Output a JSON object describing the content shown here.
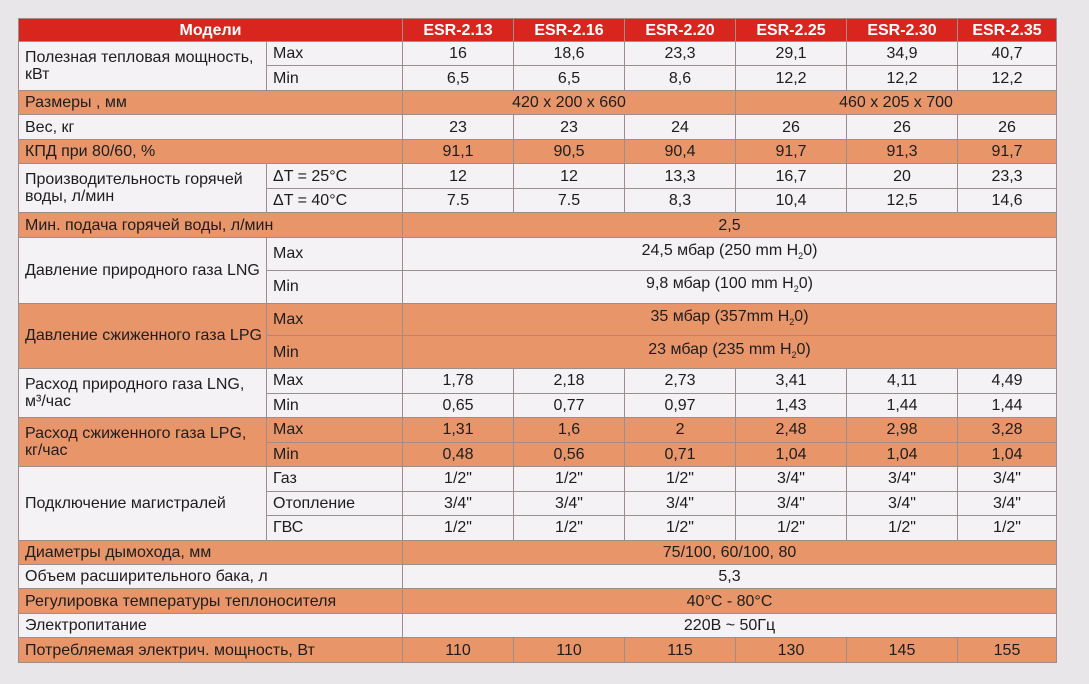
{
  "header": {
    "models_label": "Модели",
    "models": [
      "ESR-2.13",
      "ESR-2.16",
      "ESR-2.20",
      "ESR-2.25",
      "ESR-2.30",
      "ESR-2.35"
    ]
  },
  "rows": {
    "heat_output": {
      "label": "Полезная тепловая мощность, кВт",
      "max_label": "Max",
      "min_label": "Min",
      "max": [
        "16",
        "18,6",
        "23,3",
        "29,1",
        "34,9",
        "40,7"
      ],
      "min": [
        "6,5",
        "6,5",
        "8,6",
        "12,2",
        "12,2",
        "12,2"
      ]
    },
    "dimensions": {
      "label": "Размеры , мм",
      "value_a": "420 x 200 x 660",
      "value_b": "460 x 205 x 700"
    },
    "weight": {
      "label": "Вес, кг",
      "values": [
        "23",
        "23",
        "24",
        "26",
        "26",
        "26"
      ]
    },
    "efficiency": {
      "label": "КПД при 80/60, %",
      "values": [
        "91,1",
        "90,5",
        "90,4",
        "91,7",
        "91,3",
        "91,7"
      ]
    },
    "hot_water": {
      "label": "Производительность горячей воды, л/мин",
      "t25_label": "ΔT = 25°C",
      "t40_label": "ΔT = 40°C",
      "t25": [
        "12",
        "12",
        "13,3",
        "16,7",
        "20",
        "23,3"
      ],
      "t40": [
        "7.5",
        "7.5",
        "8,3",
        "10,4",
        "12,5",
        "14,6"
      ]
    },
    "min_hot_water": {
      "label": "Мин. подача горячей воды, л/мин",
      "value": "2,5"
    },
    "lng_pressure": {
      "label": "Давление природного газа LNG",
      "max_label": "Max",
      "min_label": "Min",
      "max_value": "24,5 мбар (250 mm H",
      "min_value": "9,8 мбар  (100 mm H",
      "sub": "2",
      "tail": "0)"
    },
    "lpg_pressure": {
      "label": "Давление сжиженного газа LPG",
      "max_label": "Max",
      "min_label": "Min",
      "max_value": "35 мбар (357mm H",
      "min_value": "23 мбар (235 mm H",
      "sub": "2",
      "tail": "0)"
    },
    "lng_consumption": {
      "label": "Расход природного газа LNG, м³/час",
      "max_label": "Max",
      "min_label": "Min",
      "max": [
        "1,78",
        "2,18",
        "2,73",
        "3,41",
        "4,11",
        "4,49"
      ],
      "min": [
        "0,65",
        "0,77",
        "0,97",
        "1,43",
        "1,44",
        "1,44"
      ]
    },
    "lpg_consumption": {
      "label": "Расход сжиженного газа LPG, кг/час",
      "max_label": "Max",
      "min_label": "Min",
      "max": [
        "1,31",
        "1,6",
        "2",
        "2,48",
        "2,98",
        "3,28"
      ],
      "min": [
        "0,48",
        "0,56",
        "0,71",
        "1,04",
        "1,04",
        "1,04"
      ]
    },
    "connections": {
      "label": "Подключение магистралей",
      "gas_label": "Газ",
      "heating_label": "Отопление",
      "dhw_label": "ГВС",
      "gas": [
        "1/2\"",
        "1/2\"",
        "1/2\"",
        "3/4\"",
        "3/4\"",
        "3/4\""
      ],
      "heating": [
        "3/4\"",
        "3/4\"",
        "3/4\"",
        "3/4\"",
        "3/4\"",
        "3/4\""
      ],
      "dhw": [
        "1/2\"",
        "1/2\"",
        "1/2\"",
        "1/2\"",
        "1/2\"",
        "1/2\""
      ]
    },
    "flue": {
      "label": "Диаметры дымохода, мм",
      "value": "75/100,  60/100,  80"
    },
    "expansion_tank": {
      "label": "Объем расширительного бака, л",
      "value": "5,3"
    },
    "temp_control": {
      "label": "Регулировка температуры теплоносителя",
      "value": "40°C - 80°C"
    },
    "power_supply": {
      "label": "Электропитание",
      "value": "220В ~ 50Гц"
    },
    "power_consumption": {
      "label": "Потребляемая электрич. мощность, Вт",
      "values": [
        "110",
        "110",
        "115",
        "130",
        "145",
        "155"
      ]
    }
  }
}
